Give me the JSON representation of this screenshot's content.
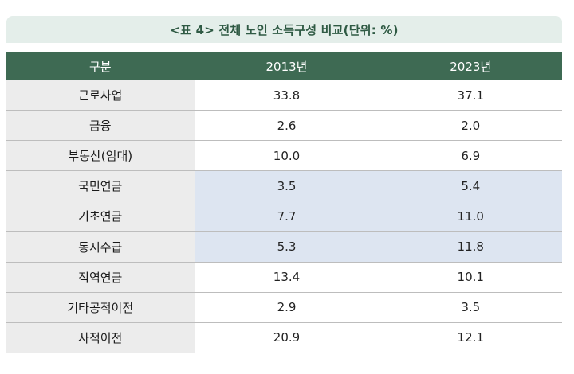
{
  "caption": "<표 4> 전체 노인 소득구성 비교(단위: %)",
  "table": {
    "headers": [
      "구분",
      "2013년",
      "2023년"
    ],
    "rows": [
      {
        "label": "근로사업",
        "v2013": "33.8",
        "v2023": "37.1",
        "highlight": false
      },
      {
        "label": "금융",
        "v2013": "2.6",
        "v2023": "2.0",
        "highlight": false
      },
      {
        "label": "부동산(임대)",
        "v2013": "10.0",
        "v2023": "6.9",
        "highlight": false
      },
      {
        "label": "국민연금",
        "v2013": "3.5",
        "v2023": "5.4",
        "highlight": true
      },
      {
        "label": "기초연금",
        "v2013": "7.7",
        "v2023": "11.0",
        "highlight": true
      },
      {
        "label": "동시수급",
        "v2013": "5.3",
        "v2023": "11.8",
        "highlight": true
      },
      {
        "label": "직역연금",
        "v2013": "13.4",
        "v2023": "10.1",
        "highlight": false
      },
      {
        "label": "기타공적이전",
        "v2013": "2.9",
        "v2023": "3.5",
        "highlight": false
      },
      {
        "label": "사적이전",
        "v2013": "20.9",
        "v2023": "12.1",
        "highlight": false
      }
    ]
  },
  "colors": {
    "caption_bg": "#e4eeea",
    "caption_text": "#2f5a44",
    "header_bg": "#3e6a53",
    "label_bg": "#ececec",
    "highlight_bg": "#dde5f1"
  }
}
